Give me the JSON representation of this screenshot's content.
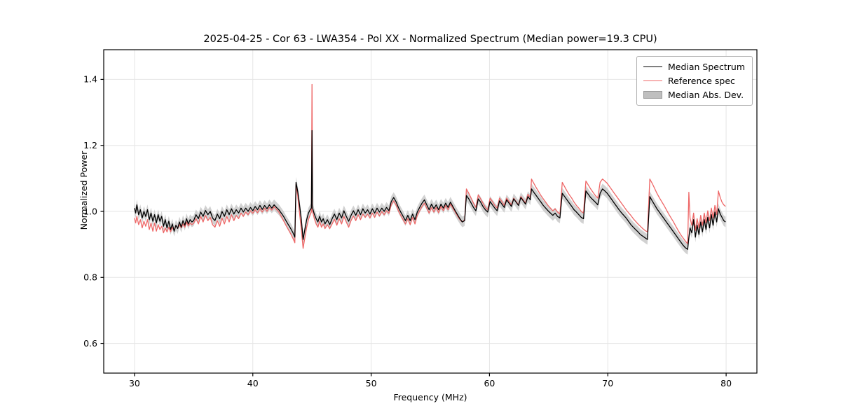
{
  "title": "2025-04-25 - Cor 63 - LWA354 - Pol XX - Normalized Spectrum (Median power=19.3 CPU)",
  "chart_data": {
    "type": "line",
    "title": "2025-04-25 - Cor 63 - LWA354 - Pol XX - Normalized Spectrum (Median power=19.3 CPU)",
    "xlabel": "Frequency (MHz)",
    "ylabel": "Normalized Power",
    "xlim": [
      27.4,
      82.6
    ],
    "ylim": [
      0.51,
      1.49
    ],
    "grid": true,
    "xticks": [
      {
        "value": 30,
        "label": "30"
      },
      {
        "value": 40,
        "label": "40"
      },
      {
        "value": 50,
        "label": "50"
      },
      {
        "value": 60,
        "label": "60"
      },
      {
        "value": 70,
        "label": "70"
      },
      {
        "value": 80,
        "label": "80"
      }
    ],
    "yticks": [
      {
        "value": 0.6,
        "label": "0.6"
      },
      {
        "value": 0.8,
        "label": "0.8"
      },
      {
        "value": 1.0,
        "label": "1.0"
      },
      {
        "value": 1.2,
        "label": "1.2"
      },
      {
        "value": 1.4,
        "label": "1.4"
      }
    ],
    "colors": {
      "median": "#000000",
      "reference": "#ee6666",
      "mad_band": "#c9c9c9",
      "grid": "#e5e5e5"
    },
    "legend": {
      "position": "upper right",
      "entries": [
        {
          "label": "Median Spectrum",
          "type": "line",
          "color": "#000000"
        },
        {
          "label": "Reference spec",
          "type": "line",
          "color": "#ee6666"
        },
        {
          "label": "Median Abs. Dev.",
          "type": "patch",
          "color": "#bfbfbf"
        }
      ]
    },
    "mad_halfwidth": 0.016,
    "points_format": [
      "frequency_mhz",
      "median_spectrum",
      "reference_spec"
    ],
    "points": [
      [
        30.0,
        1.01,
        0.98
      ],
      [
        30.1,
        0.995,
        0.965
      ],
      [
        30.2,
        1.02,
        0.985
      ],
      [
        30.35,
        0.99,
        0.96
      ],
      [
        30.5,
        1.005,
        0.975
      ],
      [
        30.65,
        0.98,
        0.95
      ],
      [
        30.8,
        1.0,
        0.97
      ],
      [
        30.95,
        0.985,
        0.955
      ],
      [
        31.1,
        1.005,
        0.975
      ],
      [
        31.25,
        0.975,
        0.945
      ],
      [
        31.4,
        0.995,
        0.965
      ],
      [
        31.55,
        0.97,
        0.94
      ],
      [
        31.7,
        0.99,
        0.965
      ],
      [
        31.85,
        0.965,
        0.94
      ],
      [
        32.0,
        0.99,
        0.96
      ],
      [
        32.15,
        0.97,
        0.945
      ],
      [
        32.3,
        0.985,
        0.955
      ],
      [
        32.45,
        0.955,
        0.935
      ],
      [
        32.6,
        0.975,
        0.95
      ],
      [
        32.75,
        0.95,
        0.938
      ],
      [
        32.9,
        0.97,
        0.952
      ],
      [
        33.05,
        0.945,
        0.938
      ],
      [
        33.2,
        0.962,
        0.952
      ],
      [
        33.35,
        0.94,
        0.942
      ],
      [
        33.5,
        0.958,
        0.958
      ],
      [
        33.65,
        0.948,
        0.948
      ],
      [
        33.8,
        0.968,
        0.96
      ],
      [
        33.95,
        0.952,
        0.95
      ],
      [
        34.1,
        0.972,
        0.962
      ],
      [
        34.25,
        0.958,
        0.952
      ],
      [
        34.4,
        0.978,
        0.968
      ],
      [
        34.55,
        0.962,
        0.956
      ],
      [
        34.7,
        0.975,
        0.965
      ],
      [
        34.85,
        0.968,
        0.96
      ],
      [
        35.0,
        0.972,
        0.964
      ],
      [
        35.2,
        0.99,
        0.978
      ],
      [
        35.4,
        0.978,
        0.962
      ],
      [
        35.6,
        0.998,
        0.985
      ],
      [
        35.8,
        0.985,
        0.968
      ],
      [
        36.0,
        1.003,
        0.988
      ],
      [
        36.2,
        0.99,
        0.972
      ],
      [
        36.4,
        1.0,
        0.982
      ],
      [
        36.6,
        0.98,
        0.96
      ],
      [
        36.8,
        0.972,
        0.952
      ],
      [
        37.0,
        0.992,
        0.972
      ],
      [
        37.2,
        0.978,
        0.955
      ],
      [
        37.4,
        1.0,
        0.98
      ],
      [
        37.6,
        0.985,
        0.962
      ],
      [
        37.8,
        1.005,
        0.985
      ],
      [
        38.0,
        0.99,
        0.968
      ],
      [
        38.2,
        1.008,
        0.99
      ],
      [
        38.4,
        0.992,
        0.972
      ],
      [
        38.6,
        1.005,
        0.988
      ],
      [
        38.8,
        0.995,
        0.978
      ],
      [
        39.0,
        1.01,
        0.995
      ],
      [
        39.2,
        0.998,
        0.985
      ],
      [
        39.4,
        1.01,
        0.998
      ],
      [
        39.6,
        1.0,
        0.99
      ],
      [
        39.8,
        1.012,
        1.002
      ],
      [
        40.0,
        1.002,
        0.994
      ],
      [
        40.2,
        1.015,
        1.005
      ],
      [
        40.4,
        1.005,
        0.996
      ],
      [
        40.6,
        1.018,
        1.008
      ],
      [
        40.8,
        1.006,
        0.998
      ],
      [
        41.0,
        1.018,
        1.01
      ],
      [
        41.2,
        1.008,
        1.0
      ],
      [
        41.4,
        1.02,
        1.012
      ],
      [
        41.6,
        1.01,
        1.004
      ],
      [
        41.8,
        1.02,
        1.014
      ],
      [
        42.0,
        1.012,
        1.006
      ],
      [
        42.2,
        1.005,
        0.998
      ],
      [
        42.4,
        0.995,
        0.985
      ],
      [
        42.6,
        0.985,
        0.972
      ],
      [
        42.8,
        0.972,
        0.958
      ],
      [
        43.0,
        0.96,
        0.945
      ],
      [
        43.2,
        0.948,
        0.932
      ],
      [
        43.4,
        0.935,
        0.918
      ],
      [
        43.55,
        0.922,
        0.905
      ],
      [
        43.65,
        1.088,
        1.082
      ],
      [
        43.8,
        1.06,
        1.045
      ],
      [
        43.95,
        1.02,
        0.995
      ],
      [
        44.1,
        0.975,
        0.945
      ],
      [
        44.25,
        0.915,
        0.888
      ],
      [
        44.4,
        0.945,
        0.92
      ],
      [
        44.55,
        0.975,
        0.952
      ],
      [
        44.7,
        0.995,
        0.975
      ],
      [
        44.85,
        1.005,
        0.99
      ],
      [
        44.95,
        1.01,
        0.998
      ],
      [
        45.0,
        1.245,
        1.385
      ],
      [
        45.05,
        1.01,
        1.0
      ],
      [
        45.2,
        0.992,
        0.978
      ],
      [
        45.35,
        0.978,
        0.962
      ],
      [
        45.5,
        0.968,
        0.952
      ],
      [
        45.65,
        0.985,
        0.97
      ],
      [
        45.8,
        0.968,
        0.952
      ],
      [
        45.95,
        0.978,
        0.962
      ],
      [
        46.1,
        0.962,
        0.948
      ],
      [
        46.3,
        0.975,
        0.96
      ],
      [
        46.5,
        0.96,
        0.948
      ],
      [
        46.7,
        0.978,
        0.962
      ],
      [
        46.9,
        0.992,
        0.976
      ],
      [
        47.1,
        0.975,
        0.958
      ],
      [
        47.3,
        0.995,
        0.978
      ],
      [
        47.5,
        0.98,
        0.962
      ],
      [
        47.7,
        1.002,
        0.985
      ],
      [
        47.9,
        0.985,
        0.968
      ],
      [
        48.1,
        0.97,
        0.952
      ],
      [
        48.3,
        0.988,
        0.972
      ],
      [
        48.5,
        1.002,
        0.986
      ],
      [
        48.7,
        0.988,
        0.972
      ],
      [
        48.9,
        1.005,
        0.99
      ],
      [
        49.1,
        0.99,
        0.975
      ],
      [
        49.3,
        1.008,
        0.992
      ],
      [
        49.5,
        0.995,
        0.982
      ],
      [
        49.7,
        1.005,
        0.992
      ],
      [
        49.9,
        0.992,
        0.98
      ],
      [
        50.1,
        1.008,
        0.995
      ],
      [
        50.3,
        0.995,
        0.982
      ],
      [
        50.5,
        1.01,
        0.998
      ],
      [
        50.7,
        0.998,
        0.986
      ],
      [
        50.9,
        1.01,
        1.0
      ],
      [
        51.1,
        1.0,
        0.99
      ],
      [
        51.3,
        1.012,
        1.002
      ],
      [
        51.5,
        1.002,
        0.994
      ],
      [
        51.7,
        1.03,
        1.02
      ],
      [
        51.9,
        1.042,
        1.032
      ],
      [
        52.1,
        1.03,
        1.02
      ],
      [
        52.3,
        1.012,
        1.002
      ],
      [
        52.5,
        0.998,
        0.988
      ],
      [
        52.7,
        0.985,
        0.975
      ],
      [
        52.9,
        0.972,
        0.962
      ],
      [
        53.1,
        0.988,
        0.978
      ],
      [
        53.3,
        0.972,
        0.96
      ],
      [
        53.5,
        0.992,
        0.982
      ],
      [
        53.7,
        0.975,
        0.962
      ],
      [
        53.9,
        0.998,
        0.988
      ],
      [
        54.1,
        1.012,
        1.002
      ],
      [
        54.3,
        1.025,
        1.015
      ],
      [
        54.5,
        1.035,
        1.025
      ],
      [
        54.7,
        1.02,
        1.01
      ],
      [
        54.9,
        1.005,
        0.995
      ],
      [
        55.1,
        1.022,
        1.012
      ],
      [
        55.3,
        1.008,
        0.998
      ],
      [
        55.5,
        1.02,
        1.012
      ],
      [
        55.7,
        1.005,
        0.996
      ],
      [
        55.9,
        1.022,
        1.015
      ],
      [
        56.1,
        1.01,
        1.002
      ],
      [
        56.3,
        1.025,
        1.018
      ],
      [
        56.5,
        1.012,
        1.005
      ],
      [
        56.7,
        1.028,
        1.022
      ],
      [
        56.9,
        1.015,
        1.01
      ],
      [
        57.1,
        1.002,
        0.998
      ],
      [
        57.3,
        0.99,
        0.986
      ],
      [
        57.5,
        0.978,
        0.975
      ],
      [
        57.7,
        0.968,
        0.968
      ],
      [
        57.9,
        0.972,
        0.975
      ],
      [
        58.05,
        1.048,
        1.068
      ],
      [
        58.25,
        1.038,
        1.055
      ],
      [
        58.45,
        1.025,
        1.04
      ],
      [
        58.65,
        1.012,
        1.025
      ],
      [
        58.85,
        1.002,
        1.012
      ],
      [
        59.05,
        1.038,
        1.05
      ],
      [
        59.25,
        1.028,
        1.038
      ],
      [
        59.45,
        1.015,
        1.025
      ],
      [
        59.65,
        1.005,
        1.012
      ],
      [
        59.85,
        0.998,
        1.005
      ],
      [
        60.05,
        1.03,
        1.04
      ],
      [
        60.25,
        1.02,
        1.03
      ],
      [
        60.45,
        1.01,
        1.018
      ],
      [
        60.65,
        1.002,
        1.01
      ],
      [
        60.85,
        1.032,
        1.04
      ],
      [
        61.05,
        1.022,
        1.03
      ],
      [
        61.25,
        1.012,
        1.018
      ],
      [
        61.45,
        1.035,
        1.04
      ],
      [
        61.65,
        1.025,
        1.03
      ],
      [
        61.85,
        1.015,
        1.02
      ],
      [
        62.05,
        1.038,
        1.04
      ],
      [
        62.25,
        1.028,
        1.03
      ],
      [
        62.45,
        1.018,
        1.02
      ],
      [
        62.65,
        1.042,
        1.045
      ],
      [
        62.85,
        1.032,
        1.035
      ],
      [
        63.05,
        1.022,
        1.025
      ],
      [
        63.25,
        1.045,
        1.052
      ],
      [
        63.45,
        1.035,
        1.042
      ],
      [
        63.55,
        1.068,
        1.098
      ],
      [
        63.75,
        1.058,
        1.085
      ],
      [
        63.95,
        1.048,
        1.072
      ],
      [
        64.15,
        1.038,
        1.06
      ],
      [
        64.35,
        1.028,
        1.048
      ],
      [
        64.55,
        1.018,
        1.038
      ],
      [
        64.75,
        1.01,
        1.028
      ],
      [
        64.95,
        1.002,
        1.018
      ],
      [
        65.15,
        0.995,
        1.01
      ],
      [
        65.35,
        0.988,
        1.002
      ],
      [
        65.55,
        0.995,
        1.008
      ],
      [
        65.75,
        0.985,
        0.998
      ],
      [
        65.95,
        0.98,
        0.992
      ],
      [
        66.15,
        1.055,
        1.088
      ],
      [
        66.35,
        1.045,
        1.075
      ],
      [
        66.55,
        1.035,
        1.062
      ],
      [
        66.75,
        1.025,
        1.05
      ],
      [
        66.95,
        1.015,
        1.04
      ],
      [
        67.15,
        1.005,
        1.028
      ],
      [
        67.35,
        0.998,
        1.018
      ],
      [
        67.55,
        0.99,
        1.01
      ],
      [
        67.75,
        0.982,
        1.0
      ],
      [
        67.95,
        0.978,
        0.995
      ],
      [
        68.15,
        1.062,
        1.092
      ],
      [
        68.35,
        1.052,
        1.08
      ],
      [
        68.55,
        1.042,
        1.068
      ],
      [
        68.75,
        1.035,
        1.058
      ],
      [
        68.95,
        1.028,
        1.048
      ],
      [
        69.15,
        1.02,
        1.04
      ],
      [
        69.35,
        1.055,
        1.088
      ],
      [
        69.55,
        1.068,
        1.098
      ],
      [
        69.75,
        1.062,
        1.092
      ],
      [
        69.95,
        1.055,
        1.085
      ],
      [
        70.15,
        1.045,
        1.075
      ],
      [
        70.35,
        1.035,
        1.065
      ],
      [
        70.55,
        1.025,
        1.055
      ],
      [
        70.75,
        1.015,
        1.045
      ],
      [
        70.95,
        1.005,
        1.035
      ],
      [
        71.15,
        0.996,
        1.025
      ],
      [
        71.35,
        0.988,
        1.015
      ],
      [
        71.55,
        0.98,
        1.005
      ],
      [
        71.75,
        0.97,
        0.996
      ],
      [
        71.95,
        0.96,
        0.988
      ],
      [
        72.15,
        0.952,
        0.978
      ],
      [
        72.35,
        0.945,
        0.97
      ],
      [
        72.55,
        0.938,
        0.962
      ],
      [
        72.75,
        0.93,
        0.955
      ],
      [
        72.95,
        0.925,
        0.948
      ],
      [
        73.15,
        0.92,
        0.942
      ],
      [
        73.35,
        0.915,
        0.938
      ],
      [
        73.55,
        1.045,
        1.098
      ],
      [
        73.75,
        1.032,
        1.085
      ],
      [
        73.95,
        1.02,
        1.07
      ],
      [
        74.15,
        1.008,
        1.055
      ],
      [
        74.35,
        0.998,
        1.042
      ],
      [
        74.55,
        0.988,
        1.03
      ],
      [
        74.75,
        0.978,
        1.018
      ],
      [
        74.95,
        0.968,
        1.005
      ],
      [
        75.15,
        0.958,
        0.992
      ],
      [
        75.35,
        0.948,
        0.98
      ],
      [
        75.55,
        0.938,
        0.968
      ],
      [
        75.75,
        0.928,
        0.955
      ],
      [
        75.95,
        0.918,
        0.942
      ],
      [
        76.15,
        0.908,
        0.93
      ],
      [
        76.35,
        0.898,
        0.92
      ],
      [
        76.55,
        0.89,
        0.91
      ],
      [
        76.75,
        0.885,
        0.902
      ],
      [
        76.85,
        0.92,
        1.058
      ],
      [
        76.95,
        0.95,
        0.98
      ],
      [
        77.1,
        0.935,
        0.958
      ],
      [
        77.25,
        0.975,
        0.995
      ],
      [
        77.4,
        0.922,
        0.942
      ],
      [
        77.55,
        0.958,
        0.978
      ],
      [
        77.7,
        0.93,
        0.95
      ],
      [
        77.85,
        0.968,
        0.988
      ],
      [
        78.0,
        0.938,
        0.958
      ],
      [
        78.15,
        0.975,
        0.995
      ],
      [
        78.3,
        0.945,
        0.965
      ],
      [
        78.45,
        0.982,
        1.002
      ],
      [
        78.6,
        0.95,
        0.972
      ],
      [
        78.75,
        0.99,
        1.01
      ],
      [
        78.9,
        0.958,
        0.98
      ],
      [
        79.05,
        0.998,
        1.018
      ],
      [
        79.2,
        0.968,
        0.99
      ],
      [
        79.35,
        1.008,
        1.062
      ],
      [
        79.5,
        0.992,
        1.042
      ],
      [
        79.65,
        0.982,
        1.028
      ],
      [
        79.8,
        0.972,
        1.02
      ],
      [
        79.95,
        0.968,
        1.015
      ]
    ]
  }
}
